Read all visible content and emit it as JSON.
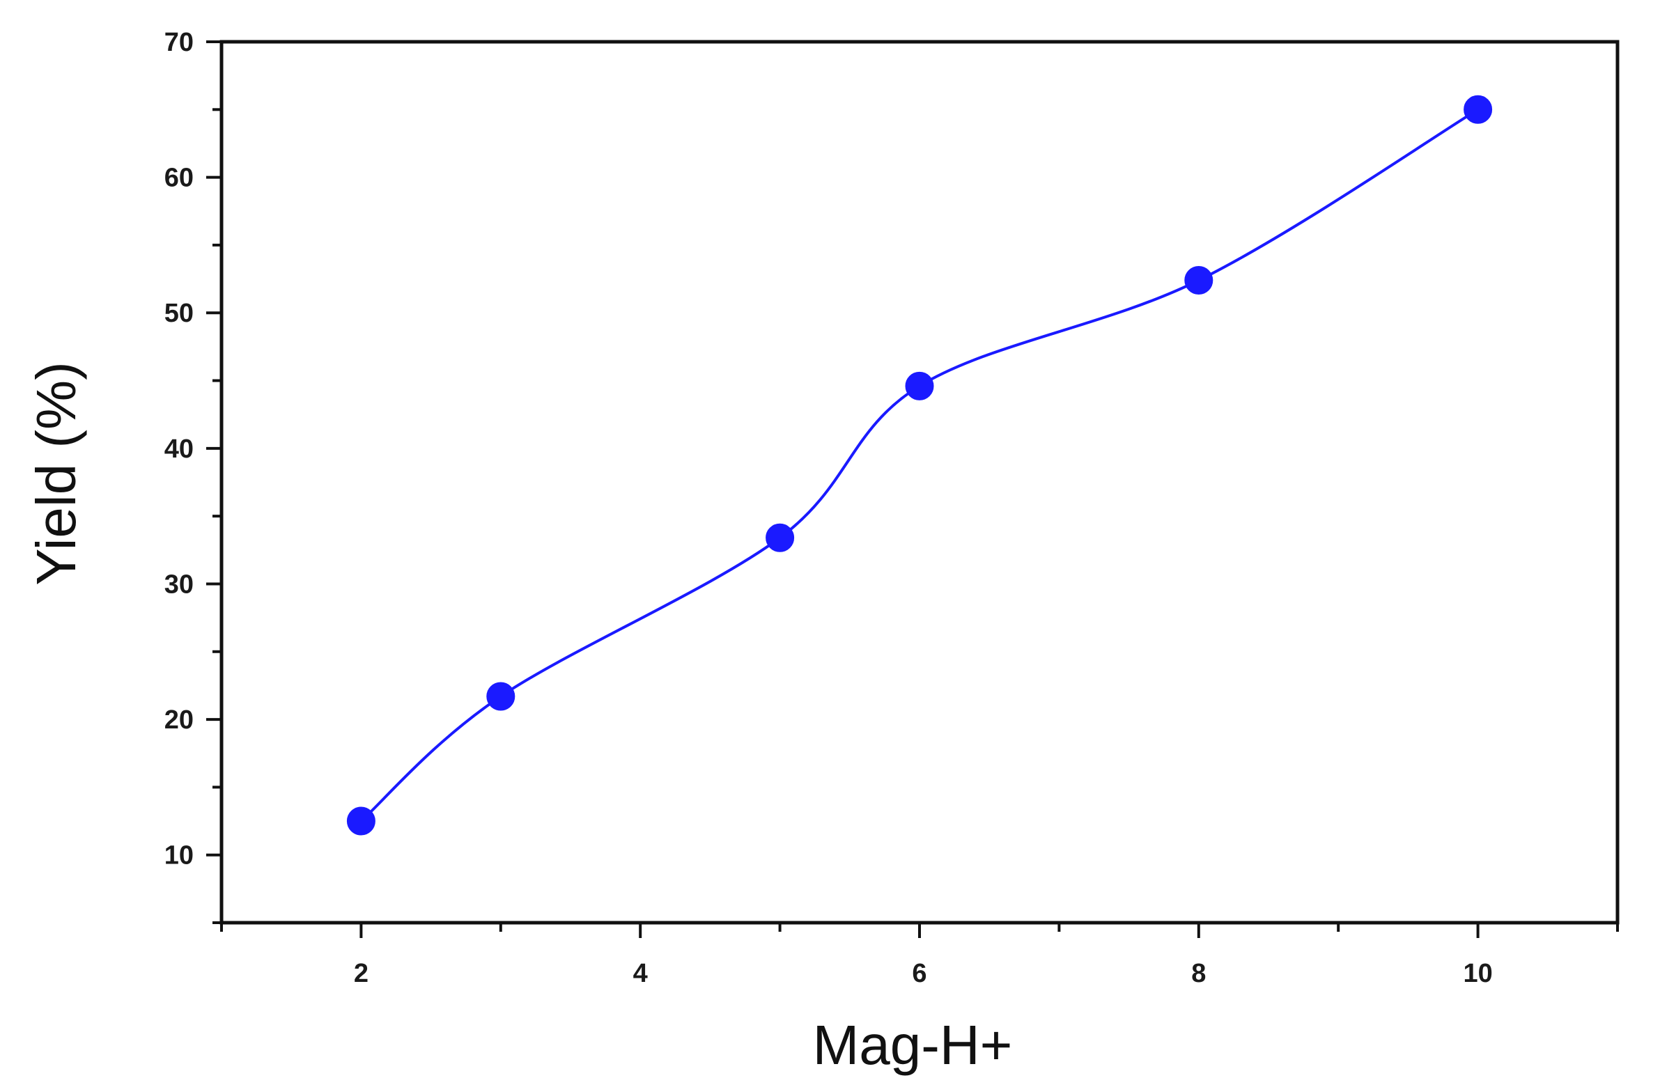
{
  "chart_data": {
    "type": "line",
    "title": "",
    "xlabel": "Mag-H+",
    "ylabel": "Yield (%)",
    "xlim": [
      1,
      11
    ],
    "ylim": [
      5,
      70
    ],
    "xticks": [
      2,
      4,
      6,
      8,
      10
    ],
    "yticks": [
      10,
      20,
      30,
      40,
      50,
      60,
      70
    ],
    "grid": false,
    "legend": "none",
    "colors": {
      "series": "#1a1aff",
      "axis": "#111111"
    },
    "series": [
      {
        "x": [
          2,
          3,
          5,
          6,
          8,
          10
        ],
        "y": [
          12.5,
          21.7,
          33.4,
          44.6,
          52.4,
          65.0
        ],
        "marker": "filled-circle",
        "line": "smooth"
      }
    ]
  }
}
